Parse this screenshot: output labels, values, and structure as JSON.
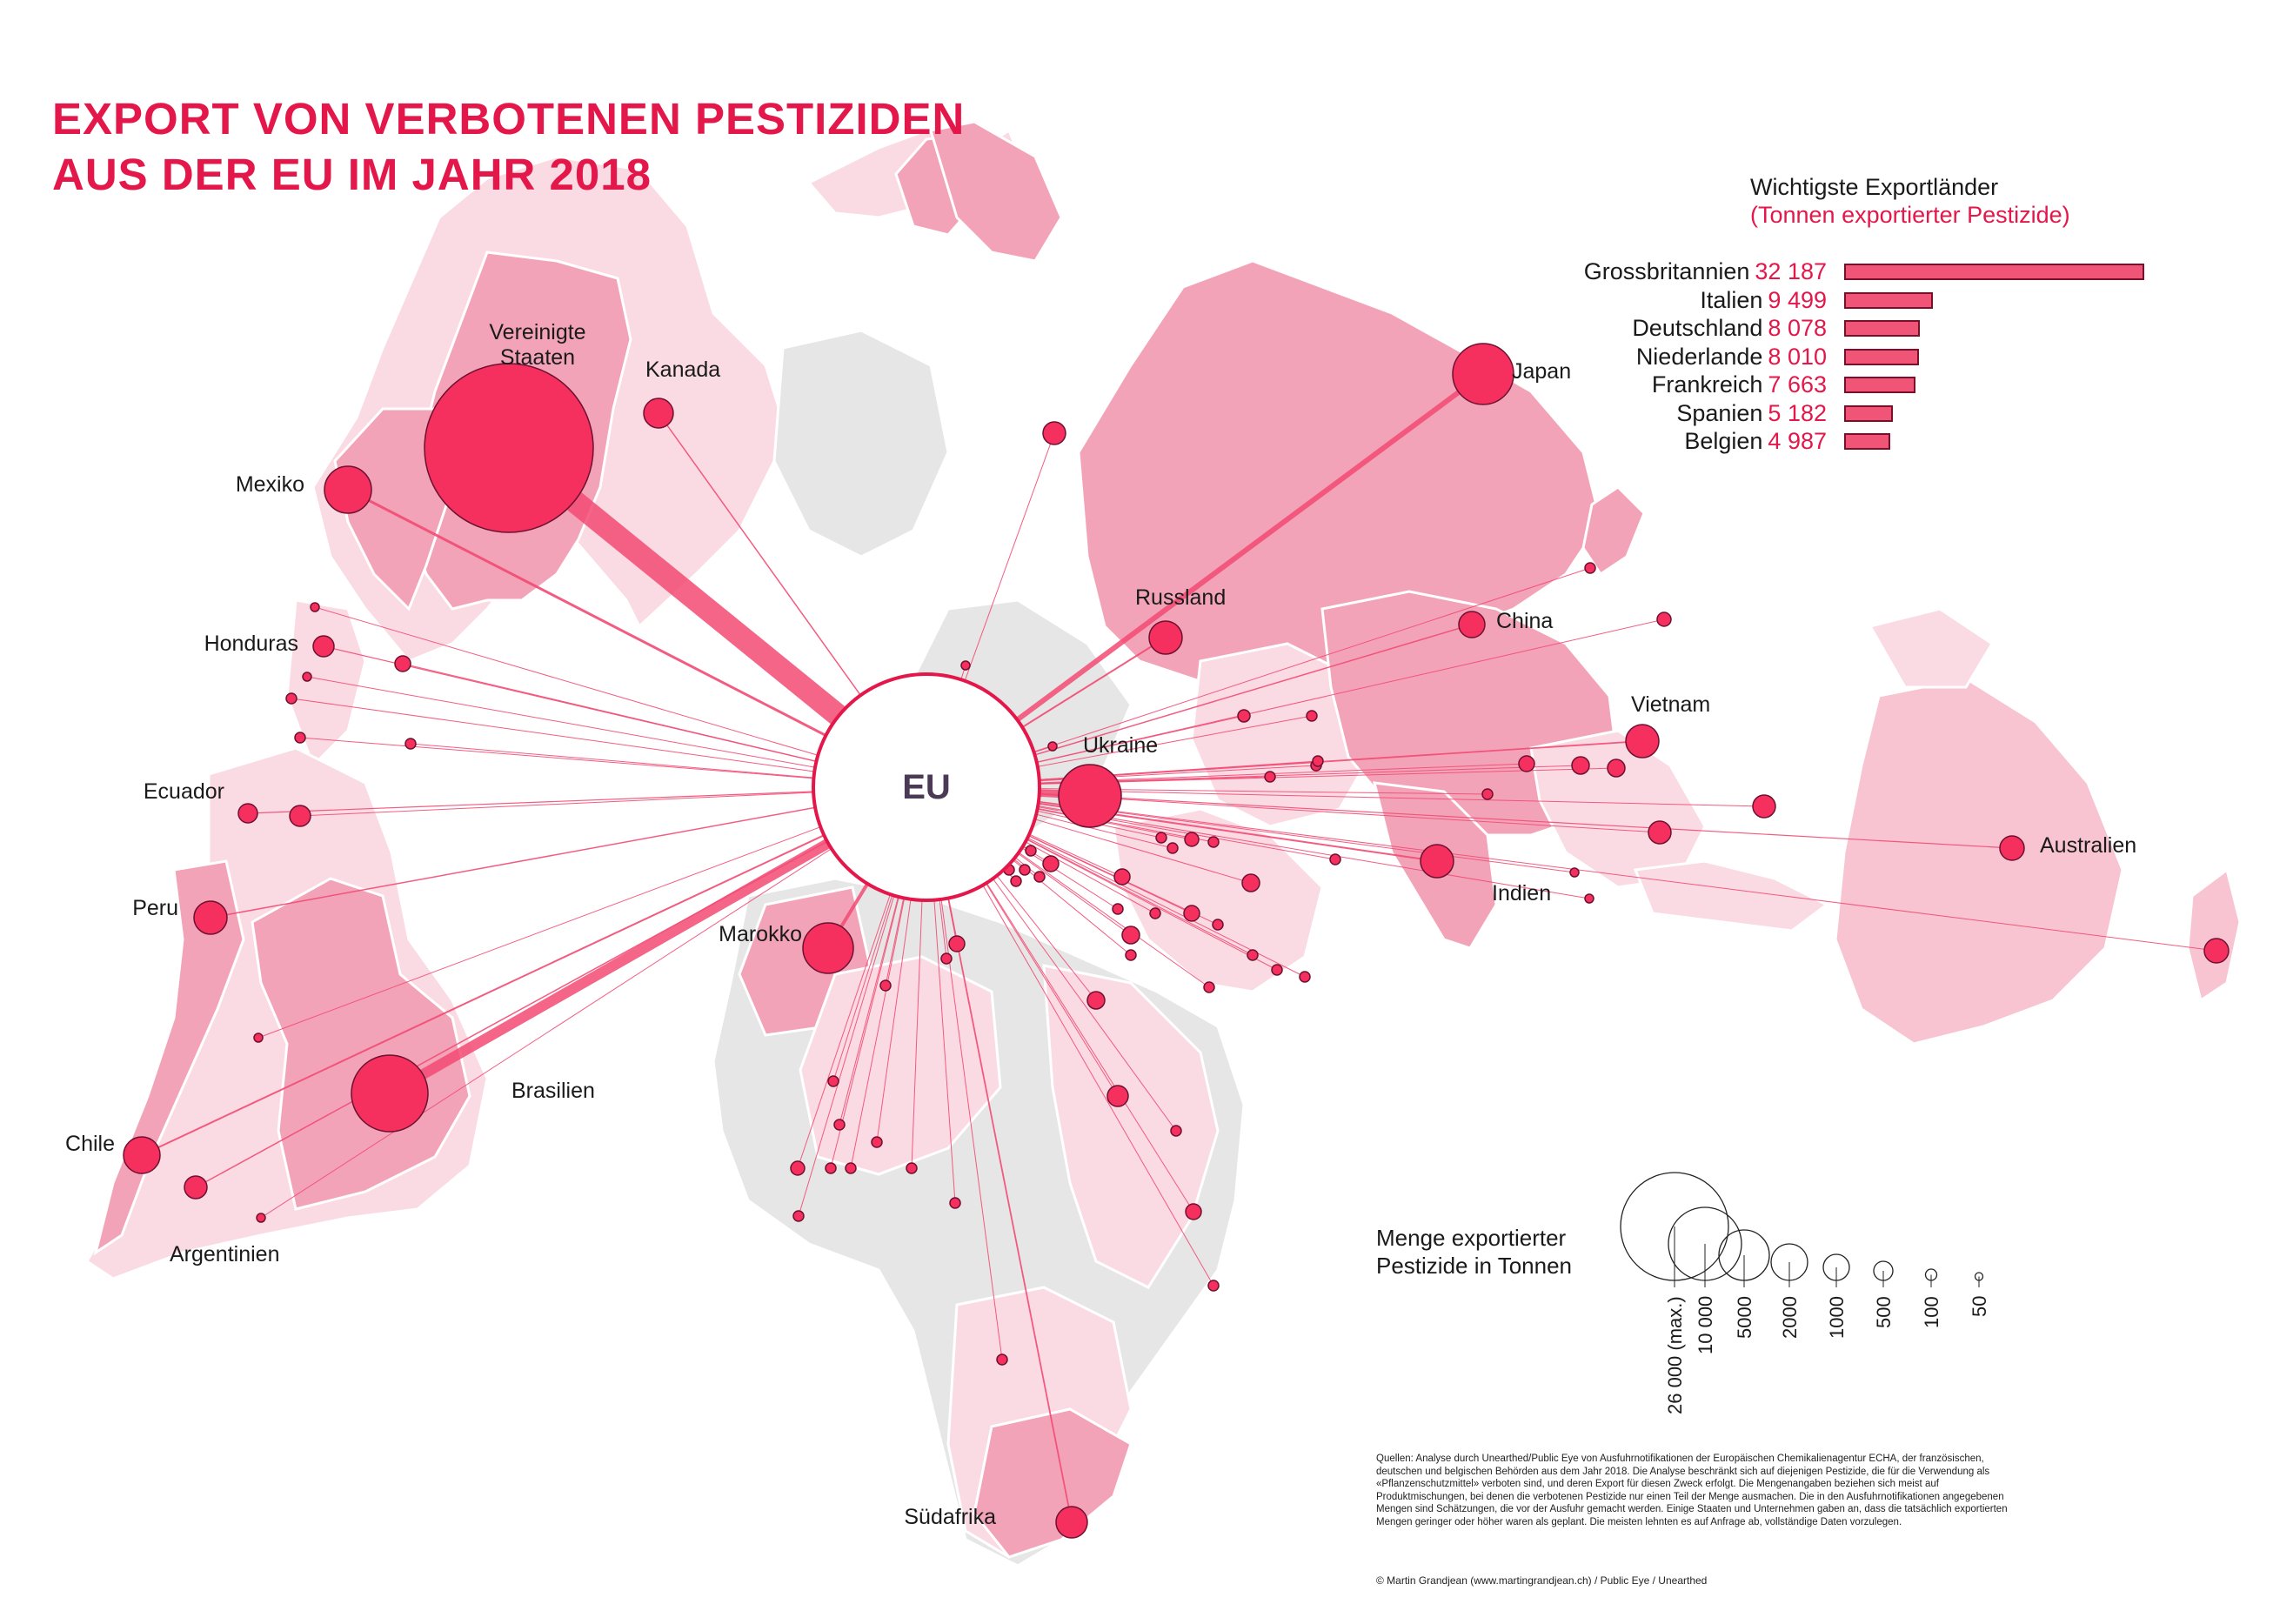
{
  "title": {
    "line1": "EXPORT VON VERBOTENEN PESTIZIDEN",
    "line2": "AUS DER EU IM JAHR 2018"
  },
  "hub": {
    "label": "EU"
  },
  "ranking": {
    "title": "Wichtigste Exportländer",
    "subtitle": "(Tonnen exportierter Pestizide)",
    "items": [
      {
        "name": "Grossbritannien",
        "value_label": "32 187",
        "value": 32187
      },
      {
        "name": "Italien",
        "value_label": "9 499",
        "value": 9499
      },
      {
        "name": "Deutschland",
        "value_label": "8 078",
        "value": 8078
      },
      {
        "name": "Niederlande",
        "value_label": "8 010",
        "value": 8010
      },
      {
        "name": "Frankreich",
        "value_label": "7 663",
        "value": 7663
      },
      {
        "name": "Spanien",
        "value_label": "5 182",
        "value": 5182
      },
      {
        "name": "Belgien",
        "value_label": "4 987",
        "value": 4987
      }
    ]
  },
  "countries": [
    {
      "name": "Vereinigte Staaten",
      "lines": [
        "Vereinigte",
        "Staaten"
      ]
    },
    {
      "name": "Kanada",
      "lines": [
        "Kanada"
      ]
    },
    {
      "name": "Mexiko",
      "lines": [
        "Mexiko"
      ]
    },
    {
      "name": "Honduras",
      "lines": [
        "Honduras"
      ]
    },
    {
      "name": "Ecuador",
      "lines": [
        "Ecuador"
      ]
    },
    {
      "name": "Peru",
      "lines": [
        "Peru"
      ]
    },
    {
      "name": "Brasilien",
      "lines": [
        "Brasilien"
      ]
    },
    {
      "name": "Chile",
      "lines": [
        "Chile"
      ]
    },
    {
      "name": "Argentinien",
      "lines": [
        "Argentinien"
      ]
    },
    {
      "name": "Marokko",
      "lines": [
        "Marokko"
      ]
    },
    {
      "name": "Südafrika",
      "lines": [
        "Südafrika"
      ]
    },
    {
      "name": "Ukraine",
      "lines": [
        "Ukraine"
      ]
    },
    {
      "name": "Russland",
      "lines": [
        "Russland"
      ]
    },
    {
      "name": "Japan",
      "lines": [
        "Japan"
      ]
    },
    {
      "name": "China",
      "lines": [
        "China"
      ]
    },
    {
      "name": "Vietnam",
      "lines": [
        "Vietnam"
      ]
    },
    {
      "name": "Indien",
      "lines": [
        "Indien"
      ]
    },
    {
      "name": "Australien",
      "lines": [
        "Australien"
      ]
    }
  ],
  "legend": {
    "title_line1": "Menge exportierter",
    "title_line2": "Pestizide in Tonnen",
    "labels": [
      "26 000 (max.)",
      "10 000",
      "5000",
      "2000",
      "1000",
      "500",
      "100",
      "50"
    ]
  },
  "sources": "Quellen: Analyse durch Unearthed/Public Eye von Ausfuhrnotifikationen der Europäischen Chemikalienagentur ECHA, der französischen, deutschen und belgischen Behörden aus dem Jahr 2018. Die Analyse beschränkt sich auf diejenigen Pestizide, die für die Verwendung als «Pflanzenschutzmittel» verboten sind, und deren Export für diesen Zweck erfolgt. Die Mengenangaben beziehen sich meist auf Produktmischungen, bei denen die verbotenen Pestizide nur einen Teil der Menge ausmachen. Die in den Ausfuhrnotifikationen angegebenen Mengen sind Schätzungen, die vor der Ausfuhr gemacht werden. Einige Staaten und Unternehmen gaben an, dass die tatsächlich exportierten Mengen geringer oder höher waren als geplant. Die meisten lehnten es auf Anfrage ab, vollständige Daten vorzulegen.",
  "credit": "© Martin Grandjean (www.martingrandjean.ch) / Public Eye / Unearthed",
  "colors": {
    "accent": "#e3174a",
    "node": "#f5305f",
    "link": "#f24a73",
    "land_grey": "#e6e6e6",
    "land_dark": "#f3a3b8",
    "land_mid": "#f8c4d1",
    "land_light": "#fbdbe3"
  }
}
